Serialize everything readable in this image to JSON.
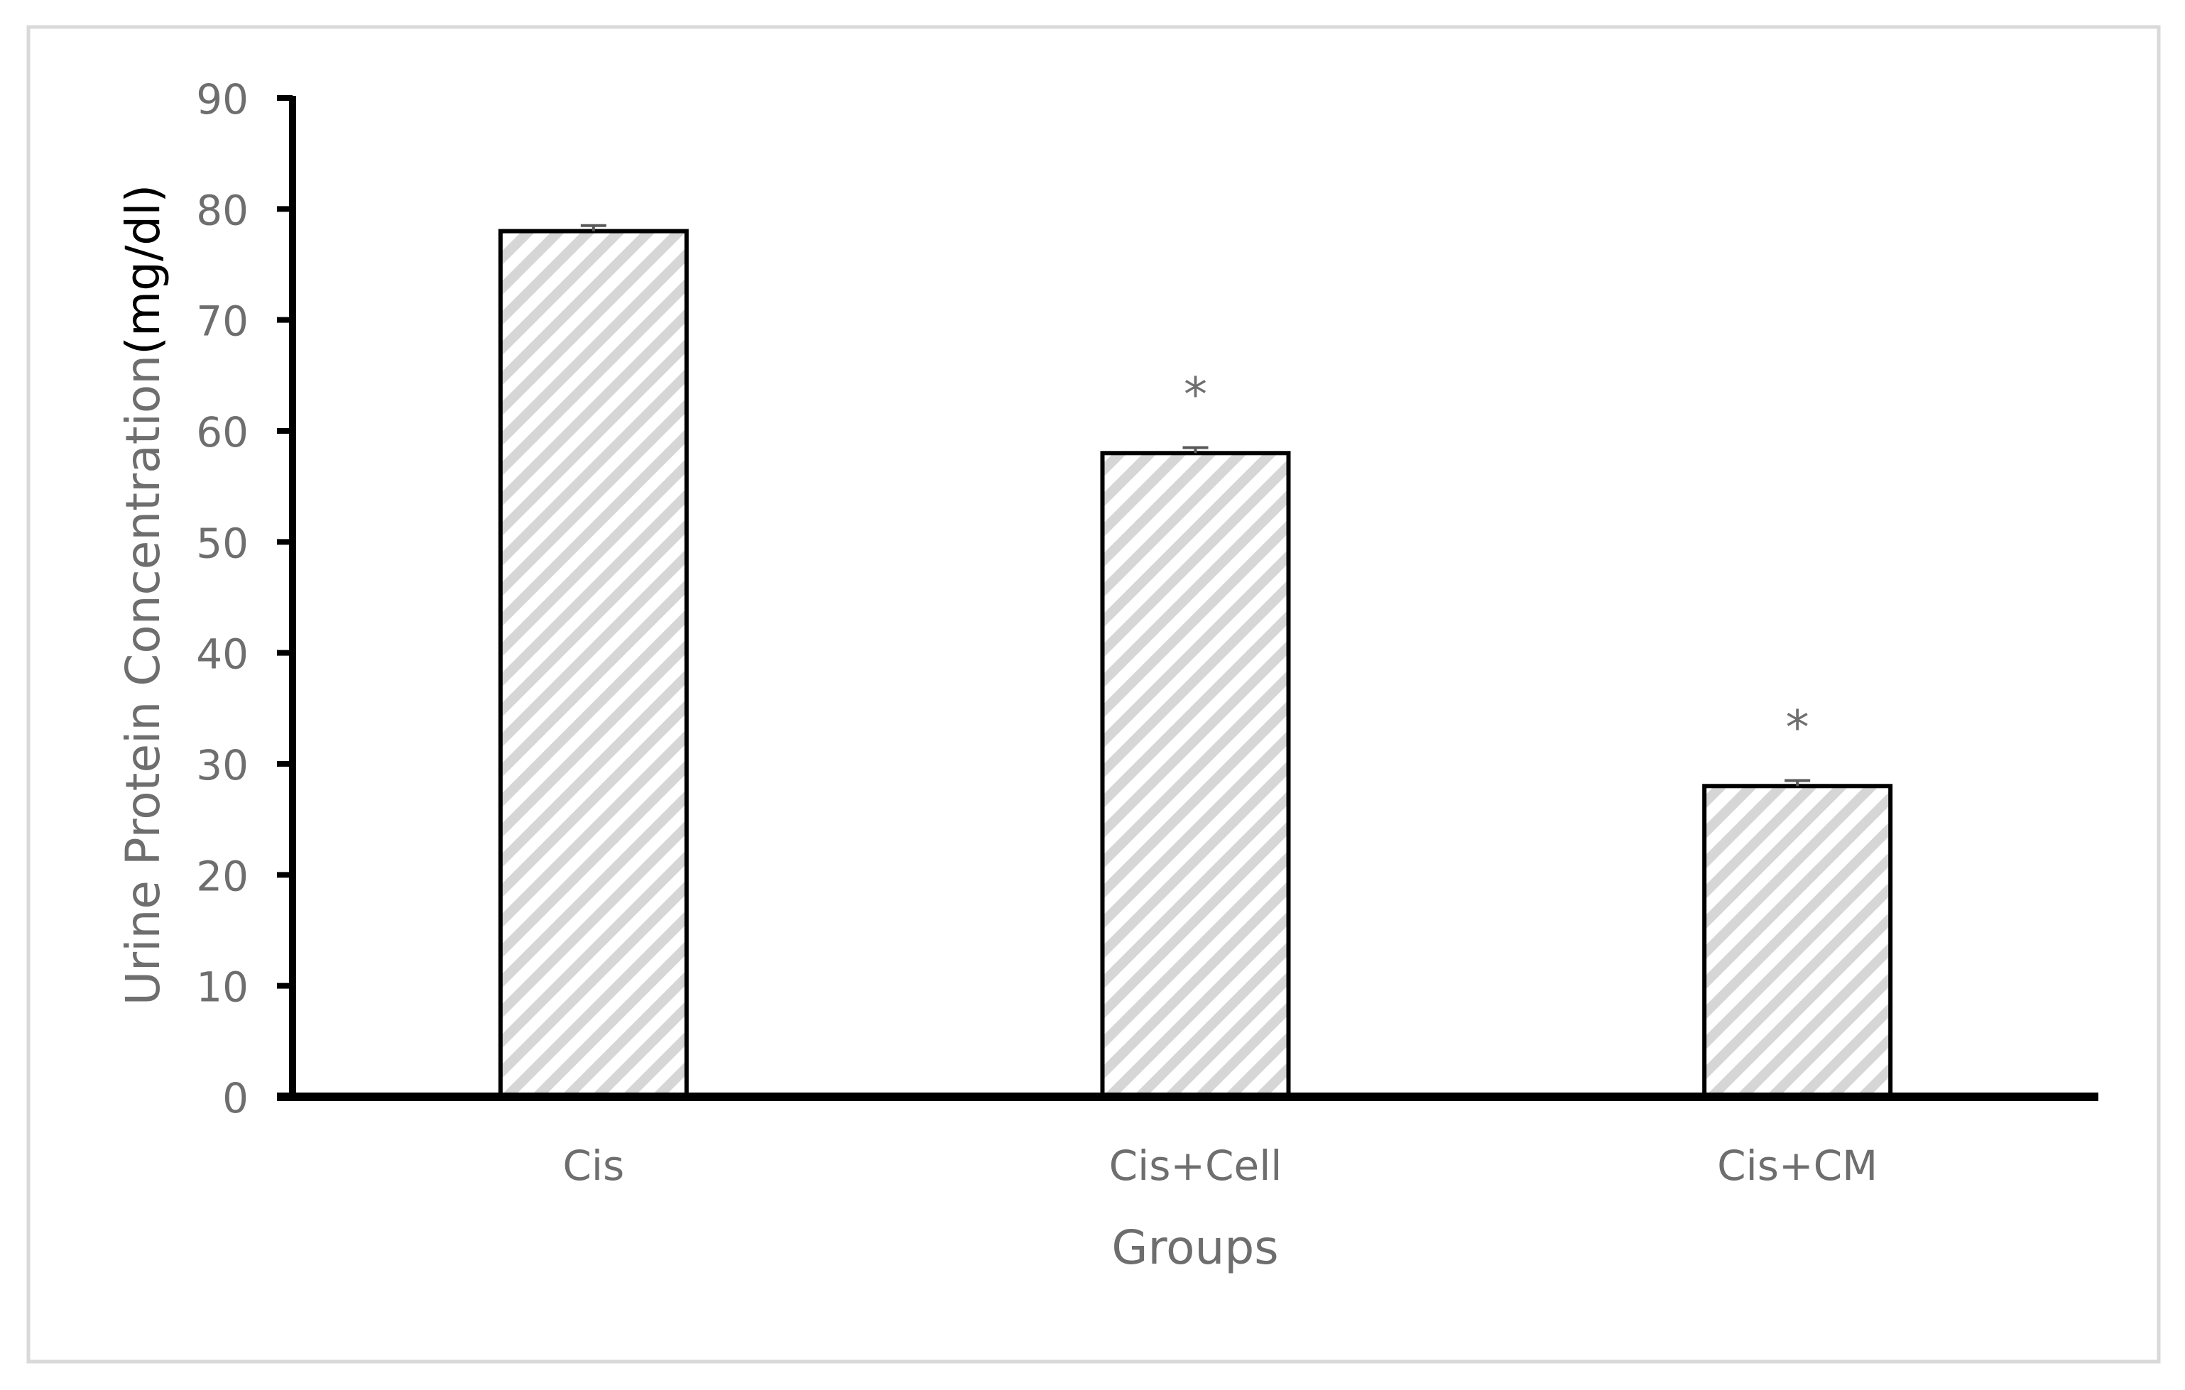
{
  "chart_data": {
    "type": "bar",
    "title": "",
    "xlabel": "Groups",
    "ylabel_prefix": "Urine Protein Concentration",
    "ylabel_unit": "(mg/dl)",
    "categories": [
      "Cis",
      "Cis+Cell",
      "Cis+CM"
    ],
    "values": [
      78,
      58,
      28
    ],
    "error": [
      0.5,
      0.5,
      0.5
    ],
    "annotations": [
      "",
      "*",
      "*"
    ],
    "ylim": [
      0,
      90
    ],
    "yticks": [
      0,
      10,
      20,
      30,
      40,
      50,
      60,
      70,
      80,
      90
    ],
    "grid": false,
    "legend": "none",
    "colors": {
      "bar_stroke": "#000000",
      "bar_hatch": "#d6d6d6",
      "axis": "#000000",
      "text": "#6e6e6e",
      "frame": "#d9d9d9",
      "error_bar": "#595959"
    }
  }
}
